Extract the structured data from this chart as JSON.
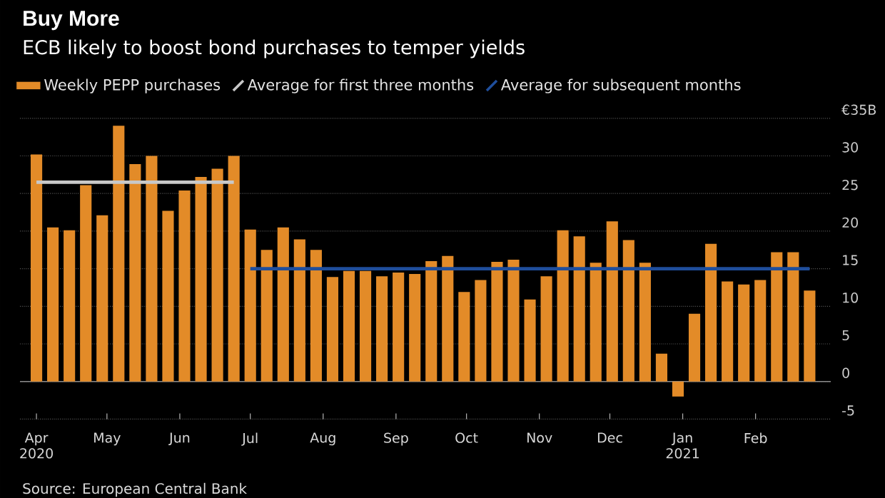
{
  "chart_data": {
    "type": "bar",
    "title": "Buy More",
    "subtitle": "ECB likely to boost bond purchases to temper yields",
    "x": [
      "2020-04-01",
      "2020-04-08",
      "2020-04-15",
      "2020-04-22",
      "2020-04-29",
      "2020-05-06",
      "2020-05-13",
      "2020-05-20",
      "2020-05-27",
      "2020-06-03",
      "2020-06-10",
      "2020-06-17",
      "2020-06-24",
      "2020-07-01",
      "2020-07-08",
      "2020-07-15",
      "2020-07-22",
      "2020-07-29",
      "2020-08-05",
      "2020-08-12",
      "2020-08-19",
      "2020-08-26",
      "2020-09-02",
      "2020-09-09",
      "2020-09-16",
      "2020-09-23",
      "2020-09-30",
      "2020-10-07",
      "2020-10-14",
      "2020-10-21",
      "2020-10-28",
      "2020-11-04",
      "2020-11-11",
      "2020-11-18",
      "2020-11-25",
      "2020-12-02",
      "2020-12-09",
      "2020-12-16",
      "2020-12-23",
      "2020-12-30",
      "2021-01-06",
      "2021-01-13",
      "2021-01-20",
      "2021-01-27",
      "2021-02-03",
      "2021-02-10",
      "2021-02-17",
      "2021-02-24"
    ],
    "series": [
      {
        "name": "Weekly PEPP purchases",
        "color": "#e38b28",
        "values": [
          30.2,
          20.5,
          20.1,
          26.1,
          22.1,
          34.0,
          28.9,
          30.0,
          22.7,
          25.4,
          27.2,
          28.3,
          30.0,
          20.2,
          17.5,
          20.5,
          18.9,
          17.5,
          13.9,
          14.7,
          14.7,
          14.0,
          14.5,
          14.3,
          16.0,
          16.7,
          11.9,
          13.5,
          15.9,
          16.2,
          10.9,
          14.0,
          20.1,
          19.3,
          15.8,
          21.3,
          18.8,
          15.8,
          3.7,
          -2.0,
          9.0,
          18.3,
          13.3,
          12.9,
          13.5,
          17.2,
          17.2,
          12.1
        ]
      },
      {
        "name": "Average for first three months",
        "type": "line",
        "color": "#c8c8c8",
        "x": [
          "2020-04-01",
          "2020-06-24"
        ],
        "values": [
          26.5,
          26.5
        ]
      },
      {
        "name": "Average for subsequent months",
        "type": "line",
        "color": "#1f4e9c",
        "x": [
          "2020-07-01",
          "2021-02-24"
        ],
        "values": [
          15.0,
          15.0
        ]
      }
    ],
    "xlim": [
      "2020-03-25",
      "2021-03-05"
    ],
    "xticks": [
      {
        "value": "2020-04-01",
        "label": "Apr 2020"
      },
      {
        "value": "2020-05-01",
        "label": "May"
      },
      {
        "value": "2020-06-01",
        "label": "Jun"
      },
      {
        "value": "2020-07-01",
        "label": "Jul"
      },
      {
        "value": "2020-08-01",
        "label": "Aug"
      },
      {
        "value": "2020-09-01",
        "label": "Sep"
      },
      {
        "value": "2020-10-01",
        "label": "Oct"
      },
      {
        "value": "2020-11-01",
        "label": "Nov"
      },
      {
        "value": "2020-12-01",
        "label": "Dec"
      },
      {
        "value": "2021-01-01",
        "label": "Jan 2021"
      },
      {
        "value": "2021-02-01",
        "label": "Feb"
      }
    ],
    "ylim": [
      -5,
      35
    ],
    "yticks": [
      -5,
      0,
      5,
      10,
      15,
      20,
      25,
      30,
      {
        "value": 35,
        "label": "€35B"
      }
    ],
    "grid": "y",
    "legend": "top left",
    "annotations": [
      "Source: European Central Bank"
    ]
  }
}
